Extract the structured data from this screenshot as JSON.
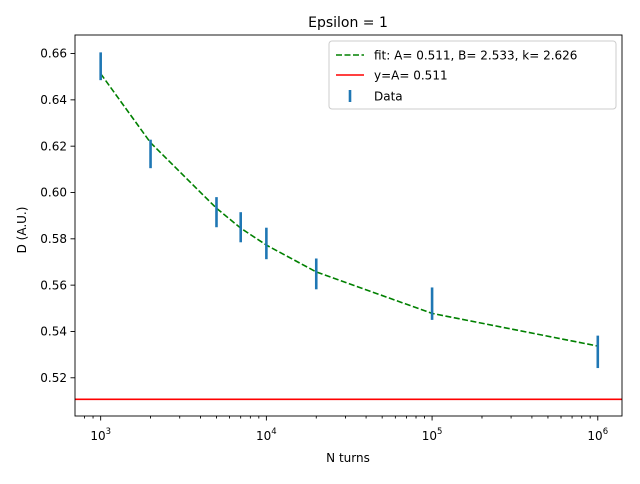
{
  "chart_data": {
    "type": "line",
    "title": "Epsilon =  1",
    "xlabel": "N turns",
    "ylabel": "D (A.U.)",
    "xscale": "log",
    "xlim": [
      700,
      1400000
    ],
    "ylim": [
      0.5035,
      0.668
    ],
    "x_ticks": [
      {
        "value": 1000,
        "base": "10",
        "exp": "3"
      },
      {
        "value": 10000,
        "base": "10",
        "exp": "4"
      },
      {
        "value": 100000,
        "base": "10",
        "exp": "5"
      },
      {
        "value": 1000000,
        "base": "10",
        "exp": "6"
      }
    ],
    "y_ticks": [
      {
        "value": 0.52,
        "label": "0.52"
      },
      {
        "value": 0.54,
        "label": "0.54"
      },
      {
        "value": 0.56,
        "label": "0.56"
      },
      {
        "value": 0.58,
        "label": "0.58"
      },
      {
        "value": 0.6,
        "label": "0.60"
      },
      {
        "value": 0.62,
        "label": "0.62"
      },
      {
        "value": 0.64,
        "label": "0.64"
      },
      {
        "value": 0.66,
        "label": "0.66"
      }
    ],
    "grid": false,
    "legend_position": "top-right",
    "series": [
      {
        "name": "fit: A= 0.511, B= 2.533, k= 2.626",
        "kind": "dashed-line",
        "color": "#008000",
        "x": [
          1000,
          2000,
          5000,
          7000,
          10000,
          20000,
          100000,
          1000000
        ],
        "y": [
          0.6513,
          0.6215,
          0.5932,
          0.5846,
          0.5773,
          0.5657,
          0.5478,
          0.5337
        ]
      },
      {
        "name": "y=A= 0.511",
        "kind": "hline",
        "color": "#ff0000",
        "y": 0.5107
      },
      {
        "name": "Data",
        "kind": "errorbar",
        "color": "#1f77b4",
        "x": [
          1000,
          2000,
          5000,
          7000,
          10000,
          20000,
          100000,
          1000000
        ],
        "ymin": [
          0.6485,
          0.6105,
          0.585,
          0.5785,
          0.5712,
          0.5582,
          0.545,
          0.5242
        ],
        "ymax": [
          0.6605,
          0.6228,
          0.598,
          0.5915,
          0.5848,
          0.5715,
          0.559,
          0.5382
        ]
      }
    ]
  }
}
